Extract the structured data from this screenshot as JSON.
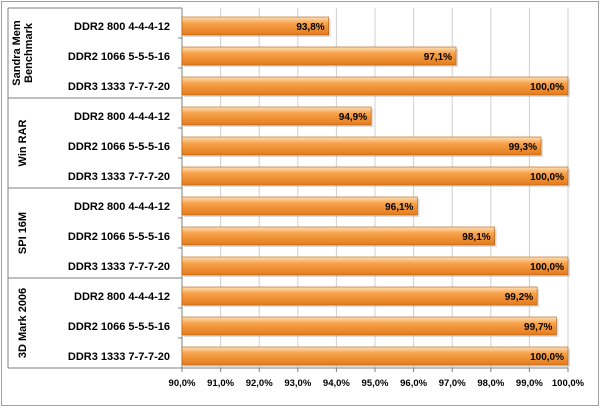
{
  "chart_data": {
    "type": "bar",
    "orientation": "horizontal",
    "groups": [
      {
        "name": "Sandra Mem Benchmark",
        "name_lines": [
          "Sandra Mem",
          "Benchmark"
        ],
        "bars": [
          {
            "category": "DDR2 800 4-4-4-12",
            "value": 93.8,
            "label": "93,8%"
          },
          {
            "category": "DDR2 1066 5-5-5-16",
            "value": 97.1,
            "label": "97,1%"
          },
          {
            "category": "DDR3 1333 7-7-7-20",
            "value": 100.0,
            "label": "100,0%"
          }
        ]
      },
      {
        "name": "Win RAR",
        "name_lines": [
          "Win RAR"
        ],
        "bars": [
          {
            "category": "DDR2 800 4-4-4-12",
            "value": 94.9,
            "label": "94,9%"
          },
          {
            "category": "DDR2 1066 5-5-5-16",
            "value": 99.3,
            "label": "99,3%"
          },
          {
            "category": "DDR3 1333 7-7-7-20",
            "value": 100.0,
            "label": "100,0%"
          }
        ]
      },
      {
        "name": "SPI 16M",
        "name_lines": [
          "SPI 16M"
        ],
        "bars": [
          {
            "category": "DDR2 800 4-4-4-12",
            "value": 96.1,
            "label": "96,1%"
          },
          {
            "category": "DDR2 1066 5-5-5-16",
            "value": 98.1,
            "label": "98,1%"
          },
          {
            "category": "DDR3 1333 7-7-7-20",
            "value": 100.0,
            "label": "100,0%"
          }
        ]
      },
      {
        "name": "3D Mark 2006",
        "name_lines": [
          "3D Mark 2006"
        ],
        "bars": [
          {
            "category": "DDR2 800 4-4-4-12",
            "value": 99.2,
            "label": "99,2%"
          },
          {
            "category": "DDR2 1066 5-5-5-16",
            "value": 99.7,
            "label": "99,7%"
          },
          {
            "category": "DDR3 1333 7-7-7-20",
            "value": 100.0,
            "label": "100,0%"
          }
        ]
      }
    ],
    "xlim": [
      90.0,
      100.0
    ],
    "x_ticks": [
      90,
      91,
      92,
      93,
      94,
      95,
      96,
      97,
      98,
      99,
      100
    ],
    "x_tick_labels": [
      "90,0%",
      "91,0%",
      "92,0%",
      "93,0%",
      "94,0%",
      "95,0%",
      "96,0%",
      "97,0%",
      "98,0%",
      "99,0%",
      "100,0%"
    ],
    "grid": "vertical",
    "legend": "none",
    "title": "",
    "xlabel": "",
    "ylabel": ""
  },
  "colors": {
    "bar_light": "#fde0b8",
    "bar_mid": "#f7a24b",
    "bar_dark": "#e37b1c",
    "bar_edge": "#b25d10",
    "grid": "#d0d0d0",
    "axis": "#808080",
    "border": "#a0a0a0"
  }
}
